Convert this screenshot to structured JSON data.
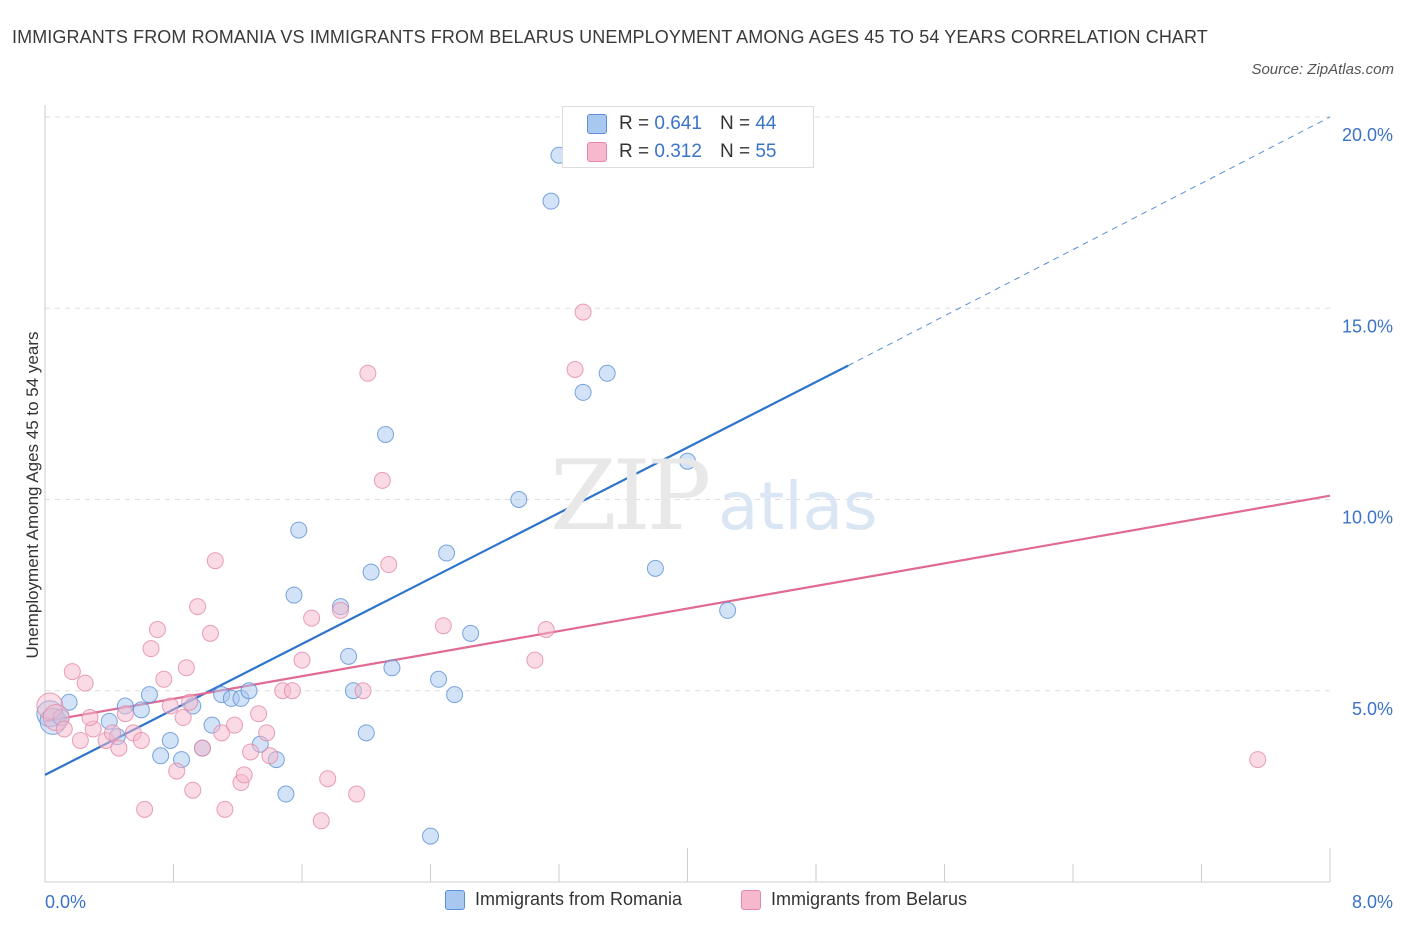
{
  "title": "IMMIGRANTS FROM ROMANIA VS IMMIGRANTS FROM BELARUS UNEMPLOYMENT AMONG AGES 45 TO 54 YEARS CORRELATION CHART",
  "source": "Source: ZipAtlas.com",
  "watermark": {
    "zip": "ZIP",
    "atlas": "atlas"
  },
  "legend_top": [
    {
      "r_label": "R =",
      "r_value": "0.641",
      "n_label": "N =",
      "n_value": "44"
    },
    {
      "r_label": "R =",
      "r_value": "0.312",
      "n_label": "N =",
      "n_value": "55"
    }
  ],
  "legend_bottom": [
    {
      "label": "Immigrants from Romania"
    },
    {
      "label": "Immigrants from Belarus"
    }
  ],
  "colors": {
    "blue_fill": "#a8c8f0",
    "blue_stroke": "#5b8fd6",
    "blue_line": "#2e74cc",
    "pink_fill": "#f5b8cc",
    "pink_stroke": "#e488a6",
    "pink_line": "#e06a94",
    "axis_label": "#3b73c8",
    "grid": "#dddddd"
  },
  "chart_data": {
    "type": "scatter",
    "title": "IMMIGRANTS FROM ROMANIA VS IMMIGRANTS FROM BELARUS UNEMPLOYMENT AMONG AGES 45 TO 54 YEARS CORRELATION CHART",
    "xlabel": "",
    "ylabel": "Unemployment Among Ages 45 to 54 years",
    "xlim": [
      0,
      8
    ],
    "ylim": [
      0,
      20
    ],
    "x_tick_labels": [
      {
        "value": 0,
        "label": "0.0%"
      },
      {
        "value": 8,
        "label": "8.0%"
      }
    ],
    "y_tick_labels": [
      {
        "value": 5,
        "label": "5.0%"
      },
      {
        "value": 10,
        "label": "10.0%"
      },
      {
        "value": 15,
        "label": "15.0%"
      },
      {
        "value": 20,
        "label": "20.0%"
      }
    ],
    "series": [
      {
        "name": "Immigrants from Romania",
        "color": "blue",
        "trend": {
          "x0": 0.0,
          "y0": 2.8,
          "x1": 5.0,
          "y1": 13.5,
          "x_dash_end": 8.0,
          "y_dash_end": 20.0
        },
        "points": [
          [
            0.03,
            4.4,
            "big"
          ],
          [
            0.05,
            4.2,
            "big"
          ],
          [
            0.1,
            4.3
          ],
          [
            0.15,
            4.7
          ],
          [
            0.4,
            4.2
          ],
          [
            0.45,
            3.8
          ],
          [
            0.5,
            4.6
          ],
          [
            0.6,
            4.5
          ],
          [
            0.65,
            4.9
          ],
          [
            0.72,
            3.3
          ],
          [
            0.78,
            3.7
          ],
          [
            0.85,
            3.2
          ],
          [
            0.92,
            4.6
          ],
          [
            0.98,
            3.5
          ],
          [
            1.04,
            4.1
          ],
          [
            1.1,
            4.9
          ],
          [
            1.16,
            4.8
          ],
          [
            1.22,
            4.8
          ],
          [
            1.27,
            5.0
          ],
          [
            1.34,
            3.6
          ],
          [
            1.44,
            3.2
          ],
          [
            1.5,
            2.3
          ],
          [
            1.55,
            7.5
          ],
          [
            1.58,
            9.2
          ],
          [
            1.84,
            7.2
          ],
          [
            1.89,
            5.9
          ],
          [
            1.92,
            5.0
          ],
          [
            2.0,
            3.9
          ],
          [
            2.03,
            8.1
          ],
          [
            2.12,
            11.7
          ],
          [
            2.16,
            5.6
          ],
          [
            2.4,
            1.2
          ],
          [
            2.5,
            8.6
          ],
          [
            2.55,
            4.9
          ],
          [
            2.65,
            6.5
          ],
          [
            2.95,
            10.0
          ],
          [
            3.15,
            17.8
          ],
          [
            3.2,
            19.0
          ],
          [
            3.35,
            12.8
          ],
          [
            3.5,
            13.3
          ],
          [
            3.8,
            8.2
          ],
          [
            4.0,
            11.0
          ],
          [
            4.25,
            7.1
          ],
          [
            2.45,
            5.3
          ]
        ]
      },
      {
        "name": "Immigrants from Belarus",
        "color": "pink",
        "trend": {
          "x0": 0.0,
          "y0": 4.2,
          "x1": 8.0,
          "y1": 10.1
        },
        "points": [
          [
            0.03,
            4.6,
            "big"
          ],
          [
            0.07,
            4.3,
            "big"
          ],
          [
            0.12,
            4.0
          ],
          [
            0.17,
            5.5
          ],
          [
            0.22,
            3.7
          ],
          [
            0.25,
            5.2
          ],
          [
            0.3,
            4.0
          ],
          [
            0.38,
            3.7
          ],
          [
            0.42,
            3.9
          ],
          [
            0.46,
            3.5
          ],
          [
            0.5,
            4.4
          ],
          [
            0.55,
            3.9
          ],
          [
            0.6,
            3.7
          ],
          [
            0.62,
            1.9
          ],
          [
            0.66,
            6.1
          ],
          [
            0.7,
            6.6
          ],
          [
            0.74,
            5.3
          ],
          [
            0.78,
            4.6
          ],
          [
            0.82,
            2.9
          ],
          [
            0.86,
            4.3
          ],
          [
            0.88,
            5.6
          ],
          [
            0.92,
            2.4
          ],
          [
            0.95,
            7.2
          ],
          [
            0.98,
            3.5
          ],
          [
            1.03,
            6.5
          ],
          [
            1.06,
            8.4
          ],
          [
            1.1,
            3.9
          ],
          [
            1.12,
            1.9
          ],
          [
            1.18,
            4.1
          ],
          [
            1.22,
            2.6
          ],
          [
            1.24,
            2.8
          ],
          [
            1.28,
            3.4
          ],
          [
            1.33,
            4.4
          ],
          [
            1.38,
            3.9
          ],
          [
            1.4,
            3.3
          ],
          [
            1.48,
            5.0
          ],
          [
            1.54,
            5.0
          ],
          [
            1.6,
            5.8
          ],
          [
            1.66,
            6.9
          ],
          [
            1.72,
            1.6
          ],
          [
            1.76,
            2.7
          ],
          [
            1.84,
            7.1
          ],
          [
            1.94,
            2.3
          ],
          [
            1.98,
            5.0
          ],
          [
            2.01,
            13.3
          ],
          [
            2.1,
            10.5
          ],
          [
            2.14,
            8.3
          ],
          [
            2.48,
            6.7
          ],
          [
            3.05,
            5.8
          ],
          [
            3.12,
            6.6
          ],
          [
            3.3,
            13.4
          ],
          [
            3.35,
            14.9
          ],
          [
            7.55,
            3.2
          ],
          [
            0.28,
            4.3
          ],
          [
            0.9,
            4.7
          ]
        ]
      }
    ]
  }
}
